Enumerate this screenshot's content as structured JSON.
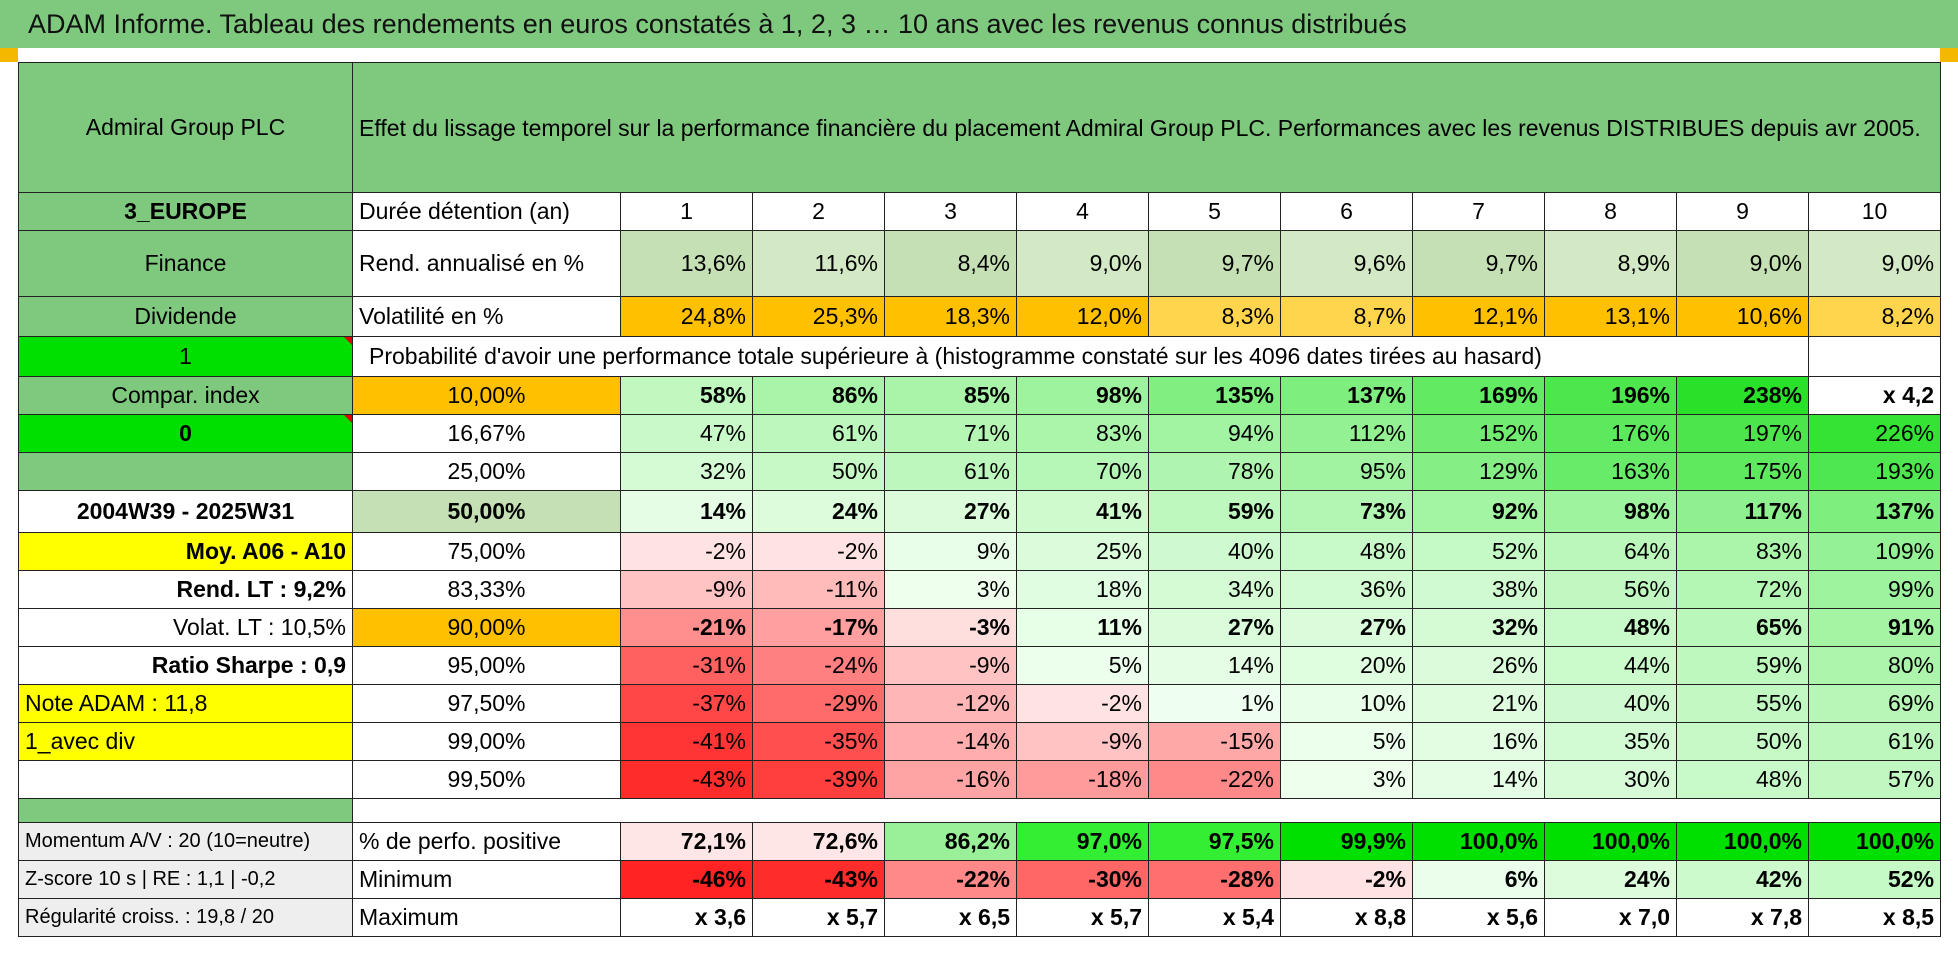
{
  "title": "ADAM Informe. Tableau des rendements en euros constatés à 1, 2, 3 … 10 ans avec les revenus connus distribués",
  "header": {
    "company": "Admiral Group PLC",
    "description": "Effet du lissage temporel sur la performance financière du placement Admiral Group PLC. Performances avec les revenus DISTRIBUES depuis avr 2005."
  },
  "side": {
    "region": "3_EUROPE",
    "sector": "Finance",
    "type": "Dividende",
    "flag1": "1",
    "compar": "Compar. index",
    "flag0": "0",
    "blank": "",
    "period": "2004W39 - 2025W31",
    "moy": "Moy. A06 - A10",
    "rend_lt": "Rend. LT :   9,2%",
    "volat_lt": "Volat. LT :   10,5%",
    "sharpe": "Ratio Sharpe :    0,9",
    "note": "Note ADAM : 11,8",
    "avec_div": "1_avec div"
  },
  "row_labels": {
    "duree": "Durée détention (an)",
    "rend": "Rend. annualisé en %",
    "vol": "Volatilité en %",
    "proba": "Probabilité d'avoir une performance totale supérieure à (histogramme constaté sur les 4096 dates tirées au hasard)"
  },
  "years": [
    "1",
    "2",
    "3",
    "4",
    "5",
    "6",
    "7",
    "8",
    "9",
    "10"
  ],
  "rend": [
    "13,6%",
    "11,6%",
    "8,4%",
    "9,0%",
    "9,7%",
    "9,6%",
    "9,7%",
    "8,9%",
    "9,0%",
    "9,0%"
  ],
  "vol": [
    "24,8%",
    "25,3%",
    "18,3%",
    "12,0%",
    "8,3%",
    "8,7%",
    "12,1%",
    "13,1%",
    "10,6%",
    "8,2%"
  ],
  "proba_rows": [
    {
      "p": "10,00%",
      "v": [
        "58%",
        "86%",
        "85%",
        "98%",
        "135%",
        "137%",
        "169%",
        "196%",
        "238%",
        "x 4,2"
      ]
    },
    {
      "p": "16,67%",
      "v": [
        "47%",
        "61%",
        "71%",
        "83%",
        "94%",
        "112%",
        "152%",
        "176%",
        "197%",
        "226%"
      ]
    },
    {
      "p": "25,00%",
      "v": [
        "32%",
        "50%",
        "61%",
        "70%",
        "78%",
        "95%",
        "129%",
        "163%",
        "175%",
        "193%"
      ]
    },
    {
      "p": "50,00%",
      "v": [
        "14%",
        "24%",
        "27%",
        "41%",
        "59%",
        "73%",
        "92%",
        "98%",
        "117%",
        "137%"
      ]
    },
    {
      "p": "75,00%",
      "v": [
        "-2%",
        "-2%",
        "9%",
        "25%",
        "40%",
        "48%",
        "52%",
        "64%",
        "83%",
        "109%"
      ]
    },
    {
      "p": "83,33%",
      "v": [
        "-9%",
        "-11%",
        "3%",
        "18%",
        "34%",
        "36%",
        "38%",
        "56%",
        "72%",
        "99%"
      ]
    },
    {
      "p": "90,00%",
      "v": [
        "-21%",
        "-17%",
        "-3%",
        "11%",
        "27%",
        "27%",
        "32%",
        "48%",
        "65%",
        "91%"
      ]
    },
    {
      "p": "95,00%",
      "v": [
        "-31%",
        "-24%",
        "-9%",
        "5%",
        "14%",
        "20%",
        "26%",
        "44%",
        "59%",
        "80%"
      ]
    },
    {
      "p": "97,50%",
      "v": [
        "-37%",
        "-29%",
        "-12%",
        "-2%",
        "1%",
        "10%",
        "21%",
        "40%",
        "55%",
        "69%"
      ]
    },
    {
      "p": "99,00%",
      "v": [
        "-41%",
        "-35%",
        "-14%",
        "-9%",
        "-15%",
        "5%",
        "16%",
        "35%",
        "50%",
        "61%"
      ]
    },
    {
      "p": "99,50%",
      "v": [
        "-43%",
        "-39%",
        "-16%",
        "-18%",
        "-22%",
        "3%",
        "14%",
        "30%",
        "48%",
        "57%"
      ]
    }
  ],
  "bottom": {
    "momentum": "Momentum A/V : 20 (10=neutre)",
    "zscore": "Z-score 10 s | RE : 1,1 | -0,2",
    "regularite": "Régularité croiss. : 19,8 / 20",
    "pos_label": "% de perfo. positive",
    "min_label": "Minimum",
    "max_label": "Maximum",
    "pos": [
      "72,1%",
      "72,6%",
      "86,2%",
      "97,0%",
      "97,5%",
      "99,9%",
      "100,0%",
      "100,0%",
      "100,0%",
      "100,0%"
    ],
    "min": [
      "-46%",
      "-43%",
      "-22%",
      "-30%",
      "-28%",
      "-2%",
      "6%",
      "24%",
      "42%",
      "52%"
    ],
    "max": [
      "x 3,6",
      "x 5,7",
      "x 6,5",
      "x 5,7",
      "x 5,4",
      "x 8,8",
      "x 5,6",
      "x 7,0",
      "x 7,8",
      "x 8,5"
    ]
  },
  "colors": {
    "header_green": "#7fc97f",
    "bright_green": "#00e000",
    "orange": "#ffc000",
    "yellow": "#ffff00",
    "red_text": "#e00000"
  }
}
